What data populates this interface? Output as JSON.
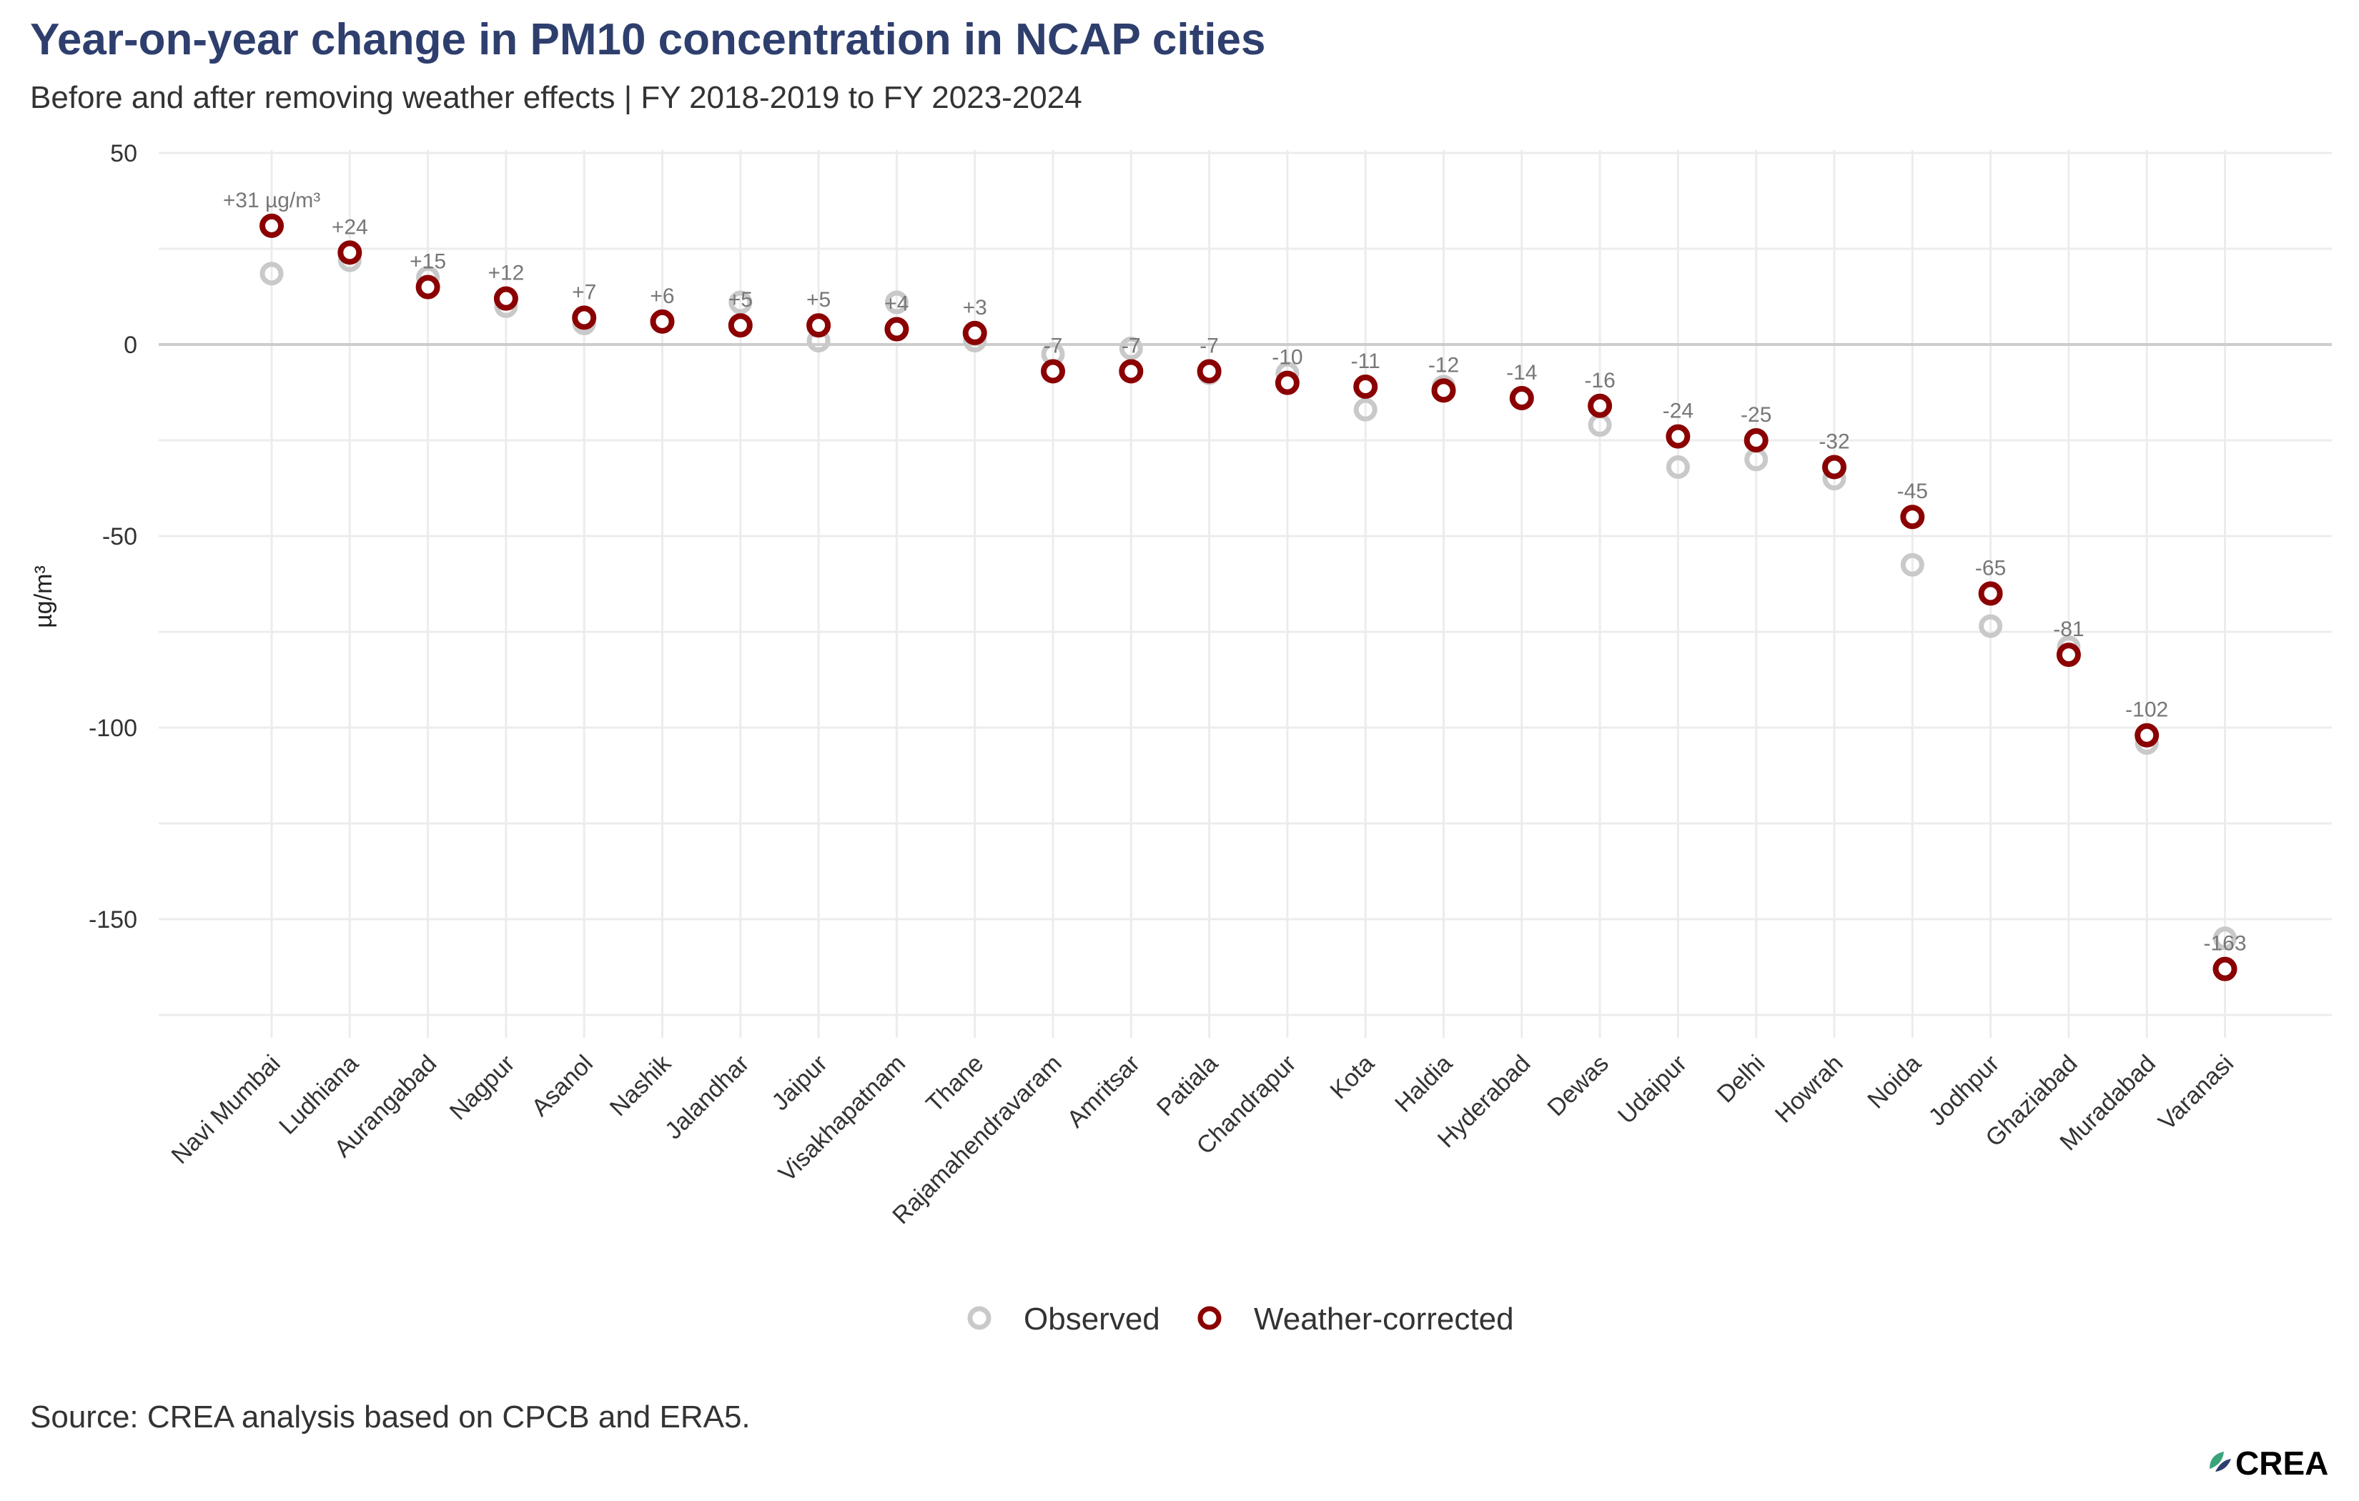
{
  "title": "Year-on-year change in PM10 concentration in NCAP cities",
  "subtitle": "Before and after removing weather effects | FY 2018-2019 to FY 2023-2024",
  "source": "Source: CREA analysis based on CPCB and ERA5.",
  "logo_text": "CREA",
  "colors": {
    "observed": "#c9c9c9",
    "weather_corrected": "#8b0000",
    "label_text": "#777777",
    "title": "#2e3f6e"
  },
  "chart_data": {
    "type": "scatter",
    "categories": [
      "Navi Mumbai",
      "Ludhiana",
      "Aurangabad",
      "Nagpur",
      "Asanol",
      "Nashik",
      "Jalandhar",
      "Jaipur",
      "Visakhapatnam",
      "Thane",
      "Rajamahendravaram",
      "Amritsar",
      "Patiala",
      "Chandrapur",
      "Kota",
      "Haldia",
      "Hyderabad",
      "Dewas",
      "Udaipur",
      "Delhi",
      "Howrah",
      "Noida",
      "Jodhpur",
      "Ghaziabad",
      "Muradabad",
      "Varanasi"
    ],
    "series": [
      {
        "name": "Observed",
        "values": [
          18.5,
          22,
          17.5,
          10,
          5.5,
          6,
          11,
          1,
          11,
          1,
          -2.5,
          -1,
          -7.5,
          -7.5,
          -17,
          -11,
          -14,
          -21,
          -32,
          -30,
          -35,
          -57.5,
          -73.5,
          -79,
          -104,
          -155
        ]
      },
      {
        "name": "Weather-corrected",
        "values": [
          31,
          24,
          15,
          12,
          7,
          6,
          5,
          5,
          4,
          3,
          -7,
          -7,
          -7,
          -10,
          -11,
          -12,
          -14,
          -16,
          -24,
          -25,
          -32,
          -45,
          -65,
          -81,
          -102,
          -163
        ]
      }
    ],
    "data_labels": [
      "+31 µg/m³",
      "+24",
      "+15",
      "+12",
      "+7",
      "+6",
      "+5",
      "+5",
      "+4",
      "+3",
      "-7",
      "-7",
      "-7",
      "-10",
      "-11",
      "-12",
      "-14",
      "-16",
      "-24",
      "-25",
      "-32",
      "-45",
      "-65",
      "-81",
      "-102",
      "-163"
    ],
    "ylabel": "µg/m³",
    "xlabel": "",
    "ylim": [
      -180,
      50
    ],
    "yticks": [
      50,
      0,
      -50,
      -100,
      -150
    ],
    "ytick_labels": [
      "50",
      "0",
      "-50",
      "-100",
      "-150"
    ],
    "grid": true,
    "legend_position": "bottom"
  }
}
